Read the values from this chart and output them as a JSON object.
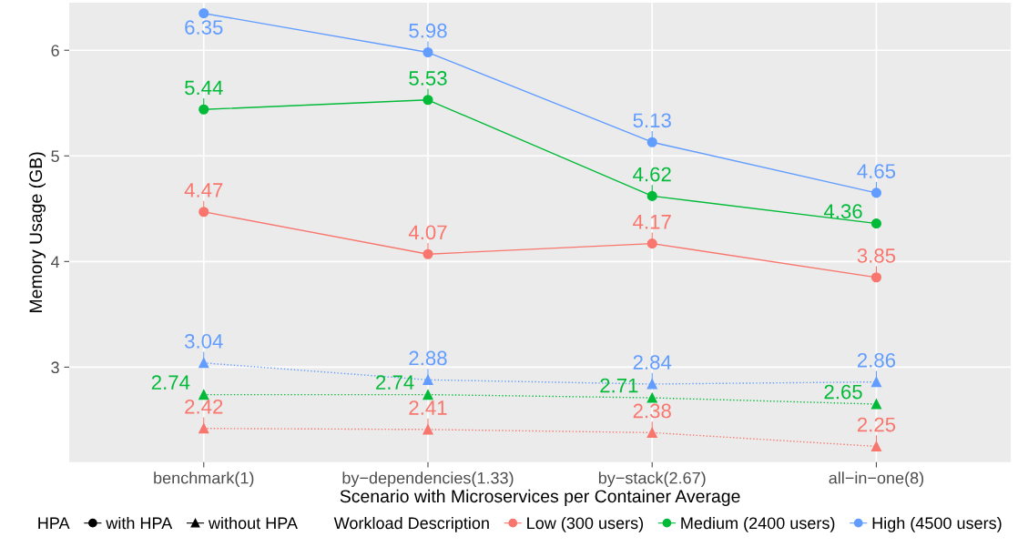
{
  "chart_data": {
    "type": "line",
    "xlabel": "Scenario with Microservices per Container Average",
    "ylabel": "Memory Usage (GB)",
    "categories": [
      "benchmark(1)",
      "by−dependencies(1.33)",
      "by−stack(2.67)",
      "all−in−one(8)"
    ],
    "series": [
      {
        "name": "Low (300 users)",
        "color": "#F8766D",
        "marker": "circle",
        "line_style": "solid",
        "values": [
          4.47,
          4.07,
          4.17,
          3.85
        ]
      },
      {
        "name": "Medium (2400 users)",
        "color": "#00BA38",
        "marker": "circle",
        "line_style": "solid",
        "values": [
          5.44,
          5.53,
          4.62,
          4.36
        ]
      },
      {
        "name": "High (4500 users)",
        "color": "#619CFF",
        "marker": "circle",
        "line_style": "solid",
        "values": [
          6.35,
          5.98,
          5.13,
          4.65
        ]
      },
      {
        "color": "#F8766D",
        "marker": "triangle",
        "line_style": "dotted",
        "values": [
          2.42,
          2.41,
          2.38,
          2.25
        ]
      },
      {
        "color": "#00BA38",
        "marker": "triangle",
        "line_style": "dotted",
        "values": [
          2.74,
          2.74,
          2.71,
          2.65
        ]
      },
      {
        "color": "#619CFF",
        "marker": "triangle",
        "line_style": "dotted",
        "values": [
          3.04,
          2.88,
          2.84,
          2.86
        ]
      }
    ],
    "annotations": [
      "HPA",
      "with HPA",
      "without HPA"
    ],
    "legend_title": "Workload Description",
    "ylim": [
      2.1,
      6.45
    ],
    "yticks": [
      3,
      4,
      5,
      6
    ],
    "grid": true,
    "legend": "bottom",
    "data_labels": true
  }
}
